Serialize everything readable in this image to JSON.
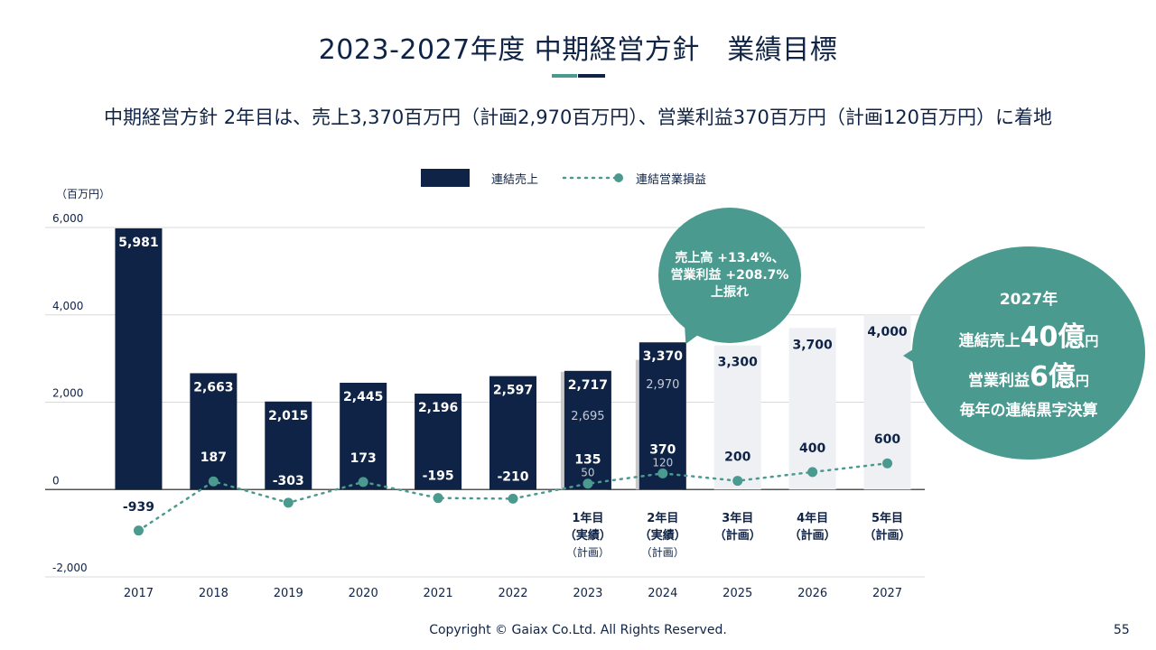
{
  "slide": {
    "title": "2023-2027年度 中期経営方針　業績目標",
    "subtitle": "中期経営方針 2年目は、売上3,370百万円（計画2,970百万円）、営業利益370百万円（計画120百万円）に着地",
    "footer": "Copyright © Gaiax Co.Ltd. All Rights Reserved.",
    "page_number": "55",
    "colors": {
      "navy": "#0f2346",
      "teal": "#4b9a8f",
      "plan_bar": "#eef0f4",
      "plan_shadow": "#c9c9c9"
    }
  },
  "bubble_small": {
    "line1": "売上高 +13.4%、",
    "line2": "営業利益 +208.7%",
    "line3": "上振れ"
  },
  "bubble_large": {
    "line1": "2027年",
    "line2_prefix": "連結売上",
    "line2_big": "40億",
    "line2_unit": "円",
    "line3_prefix": "営業利益",
    "line3_big": "6億",
    "line3_unit": "円",
    "line4": "毎年の連結黒字決算"
  },
  "chart_data": {
    "type": "bar",
    "unit_label": "（百万円）",
    "ylim": [
      -2000,
      6000
    ],
    "yticks": [
      -2000,
      0,
      2000,
      4000,
      6000
    ],
    "ytick_labels": [
      "-2,000",
      "0",
      "2,000",
      "4,000",
      "6,000"
    ],
    "grid": true,
    "legend_position": "top-center",
    "categories": [
      "2017",
      "2018",
      "2019",
      "2020",
      "2021",
      "2022",
      "2023",
      "2024",
      "2025",
      "2026",
      "2027"
    ],
    "series": [
      {
        "name": "連結売上",
        "type": "bar",
        "values": [
          5981,
          2663,
          2015,
          2445,
          2196,
          2597,
          2717,
          3370,
          3300,
          3700,
          4000
        ],
        "labels": [
          "5,981",
          "2,663",
          "2,015",
          "2,445",
          "2,196",
          "2,597",
          "2,717",
          "3,370",
          "3,300",
          "3,700",
          "4,000"
        ],
        "is_plan": [
          false,
          false,
          false,
          false,
          false,
          false,
          false,
          false,
          true,
          true,
          true
        ]
      },
      {
        "name": "連結営業損益",
        "type": "line",
        "style": "dotted",
        "values": [
          -939,
          187,
          -303,
          173,
          -195,
          -210,
          135,
          370,
          200,
          400,
          600
        ],
        "labels": [
          "-939",
          "187",
          "-303",
          "173",
          "-195",
          "-210",
          "135",
          "370",
          "200",
          "400",
          "600"
        ]
      }
    ],
    "plan_sales": {
      "categories": [
        "2023",
        "2024"
      ],
      "values": [
        2695,
        2970
      ],
      "labels": [
        "2,695",
        "2,970"
      ]
    },
    "plan_operating_income": {
      "categories": [
        "2023",
        "2024"
      ],
      "values": [
        50,
        120
      ],
      "labels": [
        "50",
        "120"
      ]
    },
    "category_notes": [
      {
        "category": "2023",
        "line1": "1年目",
        "line2": "（実績）",
        "line3": "（計画）"
      },
      {
        "category": "2024",
        "line1": "2年目",
        "line2": "（実績）",
        "line3": "（計画）"
      },
      {
        "category": "2025",
        "line1": "3年目",
        "line2": "（計画）",
        "line3": ""
      },
      {
        "category": "2026",
        "line1": "4年目",
        "line2": "（計画）",
        "line3": ""
      },
      {
        "category": "2027",
        "line1": "5年目",
        "line2": "（計画）",
        "line3": ""
      }
    ]
  }
}
